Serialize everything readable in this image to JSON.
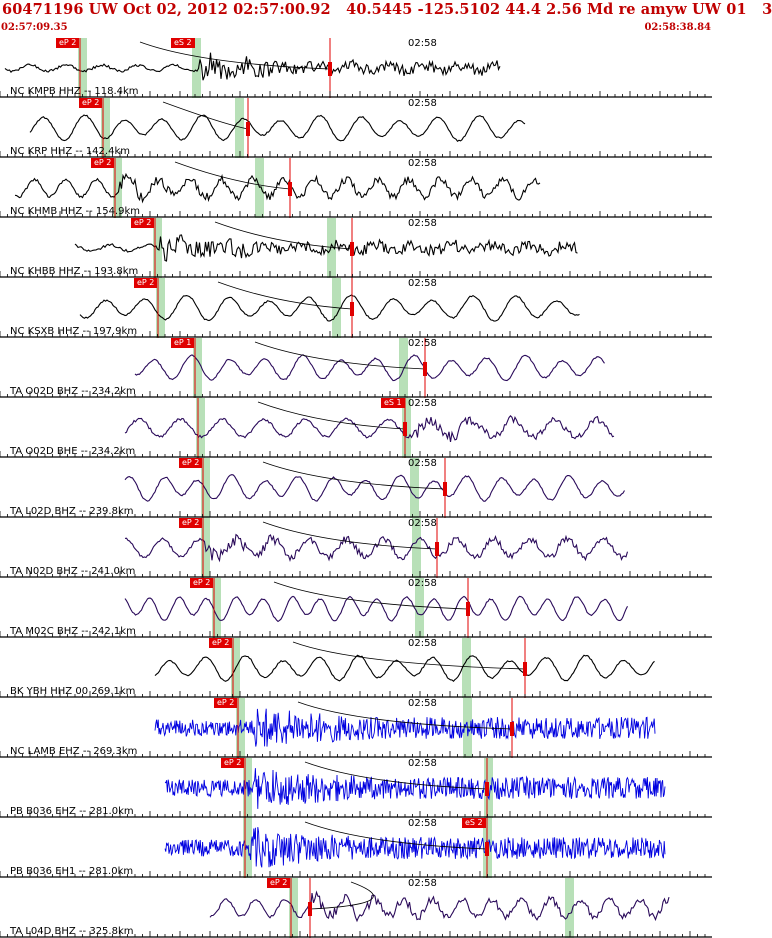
{
  "header": {
    "title": "60471196 UW Oct 02, 2012 02:57:00.92   40.5445 -125.5102 44.4 2.56 Md re amyw UW 01   3",
    "time_start": "02:57:09.35",
    "time_end": "02:58:38.84"
  },
  "time_mark": "02:58",
  "colors": {
    "pick": "#e00000",
    "window": "#b8e0b8",
    "trace_black": "#000000",
    "trace_purple": "#2a0a5a",
    "trace_blue": "#0000e0",
    "title": "#c00000"
  },
  "panels": [
    {
      "label": "NC KMPB HHZ -- 118.4km",
      "color": "trace_black",
      "style": "event",
      "p": "eP 2",
      "s": "eS 2"
    },
    {
      "label": "NC KRP HHZ -- 142.4km",
      "color": "trace_black",
      "style": "smooth",
      "p": "eP 2",
      "s": ""
    },
    {
      "label": "NC KHMB HHZ -- 154.9km",
      "color": "trace_black",
      "style": "mixed",
      "p": "eP 2",
      "s": ""
    },
    {
      "label": "NC KHBB HHZ -- 193.8km",
      "color": "trace_black",
      "style": "event",
      "p": "eP 2",
      "s": ""
    },
    {
      "label": "NC KSXB HHZ -- 197.9km",
      "color": "trace_black",
      "style": "smooth",
      "p": "eP 2",
      "s": ""
    },
    {
      "label": "TA O02D BHZ -- 234.2km",
      "color": "trace_purple",
      "style": "smooth",
      "p": "eP 1",
      "s": ""
    },
    {
      "label": "TA O02D BHE -- 234.2km",
      "color": "trace_purple",
      "style": "mixed",
      "p": "",
      "s": "eS 1"
    },
    {
      "label": "TA L02D BHZ -- 239.8km",
      "color": "trace_purple",
      "style": "smooth",
      "p": "eP 2",
      "s": ""
    },
    {
      "label": "TA N02D BHZ -- 241.0km",
      "color": "trace_purple",
      "style": "mixed",
      "p": "eP 2",
      "s": ""
    },
    {
      "label": "TA M02C BHZ -- 242.1km",
      "color": "trace_purple",
      "style": "smooth",
      "p": "eP 2",
      "s": ""
    },
    {
      "label": "BK YBH HHZ 00 269.1km",
      "color": "trace_black",
      "style": "smooth",
      "p": "eP 2",
      "s": ""
    },
    {
      "label": "NC LAMB EHZ -- 269.3km",
      "color": "trace_blue",
      "style": "noise",
      "p": "eP 2",
      "s": ""
    },
    {
      "label": "PB B036 EHZ -- 281.0km",
      "color": "trace_blue",
      "style": "noise",
      "p": "eP 2",
      "s": ""
    },
    {
      "label": "PB B036 EH1 -- 281.0km",
      "color": "trace_blue",
      "style": "noise",
      "p": "",
      "s": "eS 2"
    },
    {
      "label": "TA L04D BHZ -- 325.8km",
      "color": "trace_purple",
      "style": "mixed",
      "p": "eP 2",
      "s": ""
    }
  ]
}
